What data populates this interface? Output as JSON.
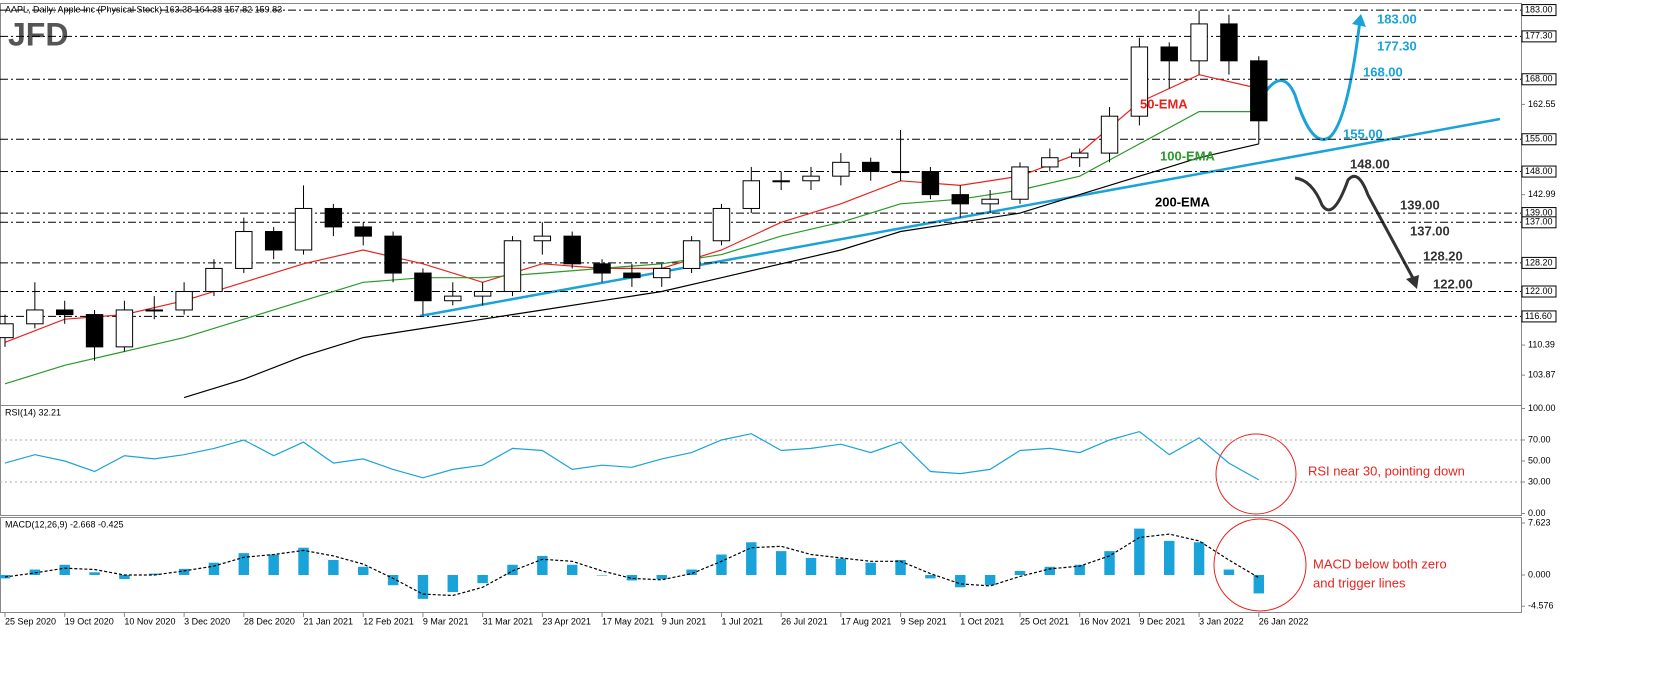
{
  "header": {
    "title": "AAPL, Daily: Apple Inc (Physical Stock) 163.38 164.38 157.82 159.83",
    "logo": "JFD"
  },
  "chart_data": [
    {
      "type": "candlestick",
      "x": [
        0,
        8,
        16,
        24,
        32,
        40,
        48,
        56,
        64,
        72,
        80,
        88,
        96,
        104,
        112,
        120,
        128,
        136,
        144,
        152,
        160,
        168,
        176,
        184,
        192,
        200,
        208,
        216,
        224,
        232,
        240,
        248,
        256,
        264,
        272,
        280,
        288,
        296,
        304,
        312,
        320,
        328,
        336
      ],
      "open": [
        112,
        115,
        118,
        117,
        110,
        118,
        118,
        122,
        127,
        135,
        131,
        140,
        136,
        134,
        126,
        120,
        121,
        122,
        133,
        134,
        128,
        126,
        125,
        127,
        133,
        140,
        146,
        146,
        147,
        150,
        148,
        148,
        143,
        141,
        142,
        149,
        151,
        152,
        160,
        175,
        172,
        180,
        172
      ],
      "high": [
        117,
        124,
        120,
        118,
        120,
        121,
        124,
        129,
        138,
        136,
        145,
        141,
        137,
        135,
        127,
        124,
        124,
        134,
        137,
        135,
        129,
        128,
        128,
        134,
        141,
        149,
        148,
        149,
        152,
        151,
        157,
        149,
        145,
        144,
        150,
        153,
        153,
        162,
        177,
        176,
        182.9,
        182,
        173
      ],
      "low": [
        110,
        114,
        115,
        107,
        109,
        116,
        117,
        121,
        126,
        129,
        130,
        134,
        132,
        124,
        117,
        119,
        119,
        121,
        130,
        127,
        124,
        123,
        123,
        126,
        132,
        139,
        144,
        144,
        145,
        146,
        146,
        142,
        138,
        139,
        141,
        148,
        149,
        150,
        158,
        166,
        169,
        169,
        154
      ],
      "close": [
        115,
        118,
        117,
        110,
        118,
        118,
        122,
        127,
        135,
        131,
        140,
        136,
        134,
        126,
        120,
        121,
        122,
        133,
        134,
        128,
        126,
        125,
        127,
        133,
        140,
        146,
        146,
        147,
        150,
        148,
        148,
        143,
        141,
        142,
        149,
        151,
        152,
        160,
        175,
        172,
        180,
        172,
        159
      ],
      "up_color": "#ffffff",
      "down_color": "#000000",
      "xlim": [
        0,
        406
      ],
      "ylim": [
        97.4,
        184.1
      ],
      "yticks": [
        {
          "value": 162.55,
          "label": "162.55"
        },
        {
          "value": 142.99,
          "label": "142.99"
        },
        {
          "value": 110.39,
          "label": "110.39"
        },
        {
          "value": 103.87,
          "label": "103.87"
        }
      ],
      "levels": [
        {
          "value": 183,
          "label": "183.00"
        },
        {
          "value": 177.3,
          "label": "177.30"
        },
        {
          "value": 168,
          "label": "168.00"
        },
        {
          "value": 155,
          "label": "155.00"
        },
        {
          "value": 148,
          "label": "148.00"
        },
        {
          "value": 139,
          "label": "139.00"
        },
        {
          "value": 137,
          "label": "137.00"
        },
        {
          "value": 128.2,
          "label": "128.20"
        },
        {
          "value": 122,
          "label": "122.00"
        },
        {
          "value": 116.6,
          "label": "116.60"
        }
      ],
      "xticks": [
        {
          "value": 0,
          "label": "25 Sep 2020"
        },
        {
          "value": 16,
          "label": "19 Oct 2020"
        },
        {
          "value": 32,
          "label": "10 Nov 2020"
        },
        {
          "value": 48,
          "label": "3 Dec 2020"
        },
        {
          "value": 64,
          "label": "28 Dec 2020"
        },
        {
          "value": 80,
          "label": "21 Jan 2021"
        },
        {
          "value": 96,
          "label": "12 Feb 2021"
        },
        {
          "value": 112,
          "label": "9 Mar 2021"
        },
        {
          "value": 128,
          "label": "31 Mar 2021"
        },
        {
          "value": 144,
          "label": "23 Apr 2021"
        },
        {
          "value": 160,
          "label": "17 May 2021"
        },
        {
          "value": 176,
          "label": "9 Jun 2021"
        },
        {
          "value": 192,
          "label": "1 Jul 2021"
        },
        {
          "value": 208,
          "label": "26 Jul 2021"
        },
        {
          "value": 224,
          "label": "17 Aug 2021"
        },
        {
          "value": 240,
          "label": "9 Sep 2021"
        },
        {
          "value": 256,
          "label": "1 Oct 2021"
        },
        {
          "value": 272,
          "label": "25 Oct 2021"
        },
        {
          "value": 288,
          "label": "16 Nov 2021"
        },
        {
          "value": 304,
          "label": "9 Dec 2021"
        },
        {
          "value": 320,
          "label": "3 Jan 2022"
        },
        {
          "value": 336,
          "label": "26 Jan 2022"
        }
      ],
      "lines": [
        {
          "name": "50-EMA",
          "color": "#e8231f",
          "x": [
            0,
            16,
            32,
            48,
            64,
            80,
            96,
            112,
            128,
            144,
            160,
            176,
            192,
            208,
            224,
            240,
            256,
            272,
            288,
            304,
            320,
            336
          ],
          "values": [
            111,
            116,
            117,
            120,
            124,
            128,
            131,
            128,
            124,
            128,
            127,
            127,
            131,
            137,
            141,
            146,
            145,
            147,
            152,
            163,
            169,
            166
          ]
        },
        {
          "name": "100-EMA",
          "color": "#2a9a2a",
          "x": [
            0,
            16,
            32,
            48,
            64,
            80,
            96,
            112,
            128,
            144,
            160,
            176,
            192,
            208,
            224,
            240,
            256,
            272,
            288,
            304,
            320,
            336
          ],
          "values": [
            102,
            106,
            109,
            112,
            116,
            120,
            124,
            125,
            125,
            126,
            127,
            128,
            130,
            134,
            137,
            141,
            142,
            144,
            147,
            154,
            161,
            161
          ]
        },
        {
          "name": "200-EMA",
          "color": "#000000",
          "x": [
            0,
            16,
            32,
            48,
            64,
            80,
            96,
            112,
            128,
            144,
            160,
            176,
            192,
            208,
            224,
            240,
            256,
            272,
            288,
            304,
            320,
            336
          ],
          "values": [
            null,
            null,
            null,
            99,
            103,
            108,
            112,
            114,
            116,
            118,
            120,
            122,
            125,
            128,
            131,
            135,
            137,
            139,
            143,
            147,
            151,
            154
          ]
        }
      ],
      "annotations": [
        {
          "text": "183.00",
          "color": "#1aa3d9"
        },
        {
          "text": "177.30",
          "color": "#1aa3d9"
        },
        {
          "text": "168.00",
          "color": "#1aa3d9"
        },
        {
          "text": "155.00",
          "color": "#1aa3d9"
        },
        {
          "text": "148.00",
          "color": "#333333"
        },
        {
          "text": "139.00",
          "color": "#333333"
        },
        {
          "text": "137.00",
          "color": "#333333"
        },
        {
          "text": "128.20",
          "color": "#333333"
        },
        {
          "text": "122.00",
          "color": "#333333"
        }
      ]
    },
    {
      "type": "line",
      "title": "RSI(14) 32.21",
      "x": [
        0,
        8,
        16,
        24,
        32,
        40,
        48,
        56,
        64,
        72,
        80,
        88,
        96,
        104,
        112,
        120,
        128,
        136,
        144,
        152,
        160,
        168,
        176,
        184,
        192,
        200,
        208,
        216,
        224,
        232,
        240,
        248,
        256,
        264,
        272,
        280,
        288,
        296,
        304,
        312,
        320,
        328,
        336
      ],
      "values": [
        48,
        56,
        50,
        40,
        55,
        52,
        56,
        62,
        70,
        55,
        68,
        48,
        52,
        42,
        34,
        42,
        46,
        62,
        60,
        42,
        46,
        44,
        52,
        58,
        70,
        76,
        60,
        62,
        66,
        58,
        68,
        40,
        38,
        42,
        60,
        62,
        58,
        70,
        78,
        56,
        72,
        48,
        32
      ],
      "color": "#1aa3d9",
      "xlim": [
        0,
        406
      ],
      "ylim": [
        -1.4,
        103.3
      ],
      "yticks": [
        {
          "value": 100,
          "label": "100.00"
        },
        {
          "value": 70,
          "label": "70.00"
        },
        {
          "value": 50,
          "label": "50.00"
        },
        {
          "value": 30,
          "label": "30.00"
        },
        {
          "value": 0,
          "label": "0.00"
        }
      ],
      "dotted_levels": [
        70,
        30
      ],
      "annotation": "RSI near 30, pointing down"
    },
    {
      "type": "macd",
      "title": "MACD(12,26,9) -2.668 -0.425",
      "x": [
        0,
        8,
        16,
        24,
        32,
        40,
        48,
        56,
        64,
        72,
        80,
        88,
        96,
        104,
        112,
        120,
        128,
        136,
        144,
        152,
        160,
        168,
        176,
        184,
        192,
        200,
        208,
        216,
        224,
        232,
        240,
        248,
        256,
        264,
        272,
        280,
        288,
        296,
        304,
        312,
        320,
        328,
        336
      ],
      "histogram": [
        -0.5,
        0.8,
        1.5,
        0.4,
        -0.6,
        0.2,
        0.9,
        1.8,
        3.2,
        3.0,
        4.0,
        2.2,
        1.2,
        -1.5,
        -3.5,
        -2.5,
        -1.2,
        1.5,
        2.8,
        1.5,
        0.0,
        -0.8,
        -0.6,
        0.8,
        3.0,
        4.8,
        3.5,
        2.5,
        2.4,
        1.8,
        2.2,
        -0.5,
        -1.8,
        -1.5,
        0.6,
        1.2,
        1.5,
        3.5,
        6.8,
        5.0,
        4.8,
        0.8,
        -2.7
      ],
      "signal": [
        -0.3,
        0.3,
        1.0,
        0.8,
        0.0,
        0.0,
        0.6,
        1.3,
        2.6,
        3.0,
        3.6,
        2.8,
        1.6,
        -0.5,
        -2.8,
        -3.0,
        -1.8,
        0.6,
        2.3,
        2.0,
        0.6,
        -0.5,
        -0.7,
        0.2,
        2.0,
        4.0,
        4.2,
        3.0,
        2.5,
        2.0,
        2.0,
        0.2,
        -1.3,
        -1.6,
        -0.2,
        0.9,
        1.3,
        2.8,
        5.5,
        6.0,
        5.0,
        2.2,
        -0.4
      ],
      "histogram_color": "#1aa3d9",
      "signal_color": "#000000",
      "xlim": [
        0,
        406
      ],
      "ylim": [
        -5.57,
        8.5
      ],
      "yticks": [
        7.623,
        {
          "value": 0,
          "label": "0.000"
        },
        -4.576
      ],
      "annotation": [
        "MACD below both zero",
        "and trigger lines"
      ]
    }
  ]
}
